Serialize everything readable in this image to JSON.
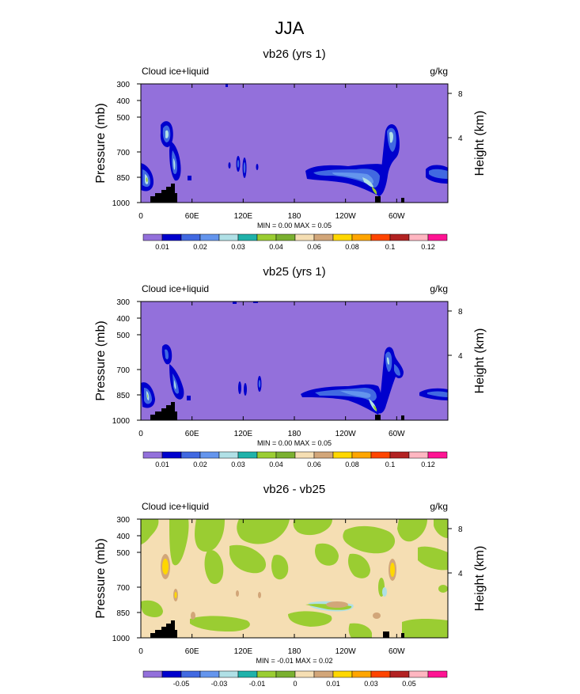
{
  "page": {
    "title": "JJA",
    "colors": {
      "fill": "#9370db",
      "land": "#000000",
      "frame": "#000000"
    }
  },
  "chart_data": [
    {
      "type": "heatmap",
      "title": "vb26 (yrs 1)",
      "left_label": "Cloud ice+liquid",
      "right_label": "g/kg",
      "ylabel": "Pressure (mb)",
      "ylabel_right": "Height (km)",
      "x_ticks": [
        "0",
        "60E",
        "120E",
        "180",
        "120W",
        "60W"
      ],
      "x_tick_values": [
        0,
        60,
        120,
        180,
        240,
        300
      ],
      "xlim": [
        0,
        360
      ],
      "y_ticks": [
        "300",
        "400",
        "500",
        "700",
        "850",
        "1000"
      ],
      "y_tick_values": [
        300,
        400,
        500,
        700,
        850,
        1000
      ],
      "ylim": [
        1000,
        300
      ],
      "y2_ticks": [
        "8",
        "4"
      ],
      "y2_tick_values": [
        8,
        4
      ],
      "min_max_label": "MIN =   0.00  MAX =   0.05",
      "stats": {
        "min": 0.0,
        "max": 0.05
      },
      "colorbar": {
        "labels": [
          "0.01",
          "0.02",
          "0.03",
          "0.04",
          "0.06",
          "0.08",
          "0.1",
          "0.12"
        ],
        "levels": [
          0.01,
          0.02,
          0.03,
          0.04,
          0.06,
          0.08,
          0.1,
          0.12
        ],
        "colors": [
          "#9370db",
          "#0000cd",
          "#4169e1",
          "#6495ed",
          "#b0e0e6",
          "#20b2aa",
          "#9acd32",
          "#7ab030",
          "#f5deb3",
          "#d2a679",
          "#ffd700",
          "#ffa500",
          "#ff4500",
          "#b22222",
          "#ffb6c1",
          "#ff1493"
        ]
      }
    },
    {
      "type": "heatmap",
      "title": "vb25 (yrs 1)",
      "left_label": "Cloud ice+liquid",
      "right_label": "g/kg",
      "ylabel": "Pressure (mb)",
      "ylabel_right": "Height (km)",
      "x_ticks": [
        "0",
        "60E",
        "120E",
        "180",
        "120W",
        "60W"
      ],
      "x_tick_values": [
        0,
        60,
        120,
        180,
        240,
        300
      ],
      "xlim": [
        0,
        360
      ],
      "y_ticks": [
        "300",
        "400",
        "500",
        "700",
        "850",
        "1000"
      ],
      "y_tick_values": [
        300,
        400,
        500,
        700,
        850,
        1000
      ],
      "ylim": [
        1000,
        300
      ],
      "y2_ticks": [
        "8",
        "4"
      ],
      "y2_tick_values": [
        8,
        4
      ],
      "min_max_label": "MIN =   0.00  MAX =   0.05",
      "stats": {
        "min": 0.0,
        "max": 0.05
      },
      "colorbar": {
        "labels": [
          "0.01",
          "0.02",
          "0.03",
          "0.04",
          "0.06",
          "0.08",
          "0.1",
          "0.12"
        ],
        "levels": [
          0.01,
          0.02,
          0.03,
          0.04,
          0.06,
          0.08,
          0.1,
          0.12
        ],
        "colors": [
          "#9370db",
          "#0000cd",
          "#4169e1",
          "#6495ed",
          "#b0e0e6",
          "#20b2aa",
          "#9acd32",
          "#7ab030",
          "#f5deb3",
          "#d2a679",
          "#ffd700",
          "#ffa500",
          "#ff4500",
          "#b22222",
          "#ffb6c1",
          "#ff1493"
        ]
      }
    },
    {
      "type": "heatmap",
      "title": "vb26 - vb25",
      "left_label": "Cloud ice+liquid",
      "right_label": "g/kg",
      "ylabel": "Pressure (mb)",
      "ylabel_right": "Height (km)",
      "x_ticks": [
        "0",
        "60E",
        "120E",
        "180",
        "120W",
        "60W"
      ],
      "x_tick_values": [
        0,
        60,
        120,
        180,
        240,
        300
      ],
      "xlim": [
        0,
        360
      ],
      "y_ticks": [
        "300",
        "400",
        "500",
        "700",
        "850",
        "1000"
      ],
      "y_tick_values": [
        300,
        400,
        500,
        700,
        850,
        1000
      ],
      "ylim": [
        1000,
        300
      ],
      "y2_ticks": [
        "8",
        "4"
      ],
      "y2_tick_values": [
        8,
        4
      ],
      "min_max_label": "MIN =  -0.01  MAX =   0.02",
      "stats": {
        "min": -0.01,
        "max": 0.02
      },
      "colorbar": {
        "labels": [
          "-0.05",
          "-0.03",
          "-0.01",
          "0",
          "0.01",
          "0.03",
          "0.05"
        ],
        "levels": [
          -0.05,
          -0.03,
          -0.01,
          0,
          0.01,
          0.03,
          0.05
        ],
        "colors": [
          "#9370db",
          "#0000cd",
          "#4169e1",
          "#6495ed",
          "#b0e0e6",
          "#20b2aa",
          "#9acd32",
          "#7ab030",
          "#f5deb3",
          "#d2a679",
          "#ffd700",
          "#ffa500",
          "#ff4500",
          "#b22222",
          "#ffb6c1",
          "#ff1493"
        ]
      }
    }
  ]
}
